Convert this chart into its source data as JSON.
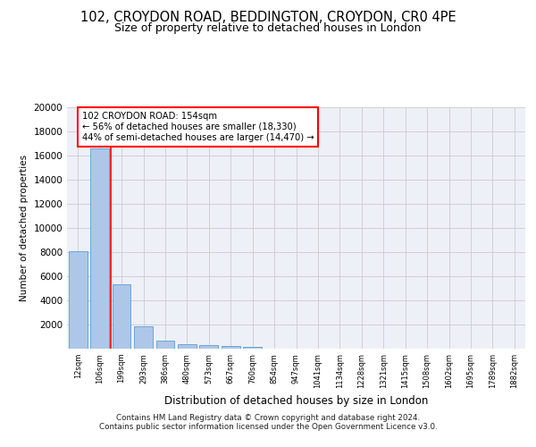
{
  "title_line1": "102, CROYDON ROAD, BEDDINGTON, CROYDON, CR0 4PE",
  "title_line2": "Size of property relative to detached houses in London",
  "xlabel": "Distribution of detached houses by size in London",
  "ylabel": "Number of detached properties",
  "bar_color": "#aec6e8",
  "bar_edge_color": "#5a9fd4",
  "grid_color": "#cccccc",
  "background_color": "#eef0f8",
  "categories": [
    "12sqm",
    "106sqm",
    "199sqm",
    "293sqm",
    "386sqm",
    "480sqm",
    "573sqm",
    "667sqm",
    "760sqm",
    "854sqm",
    "947sqm",
    "1041sqm",
    "1134sqm",
    "1228sqm",
    "1321sqm",
    "1415sqm",
    "1508sqm",
    "1602sqm",
    "1695sqm",
    "1789sqm",
    "1882sqm"
  ],
  "values": [
    8100,
    16600,
    5300,
    1850,
    650,
    350,
    270,
    200,
    175,
    0,
    0,
    0,
    0,
    0,
    0,
    0,
    0,
    0,
    0,
    0,
    0
  ],
  "annotation_text": "102 CROYDON ROAD: 154sqm\n← 56% of detached houses are smaller (18,330)\n44% of semi-detached houses are larger (14,470) →",
  "annotation_box_color": "white",
  "annotation_box_edge_color": "red",
  "vline_x": 1.5,
  "vline_color": "red",
  "ylim": [
    0,
    20000
  ],
  "yticks": [
    0,
    2000,
    4000,
    6000,
    8000,
    10000,
    12000,
    14000,
    16000,
    18000,
    20000
  ],
  "footnote_line1": "Contains HM Land Registry data © Crown copyright and database right 2024.",
  "footnote_line2": "Contains public sector information licensed under the Open Government Licence v3.0."
}
